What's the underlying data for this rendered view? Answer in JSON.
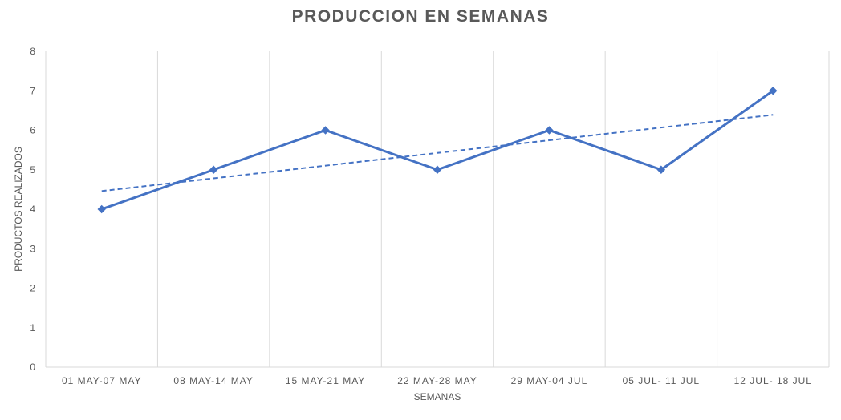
{
  "chart_data": {
    "type": "line",
    "title": "PRODUCCION EN SEMANAS",
    "xlabel": "SEMANAS",
    "ylabel": "PRODUCTOS REALIZADOS",
    "categories": [
      "01 MAY-07 MAY",
      "08 MAY-14 MAY",
      "15 MAY-21 MAY",
      "22 MAY-28 MAY",
      "29 MAY-04 JUL",
      "05 JUL- 11 JUL",
      "12 JUL- 18 JUL"
    ],
    "series": [
      {
        "values": [
          4,
          5,
          6,
          5,
          6,
          5,
          7
        ],
        "color": "#4472C4",
        "marker": "diamond",
        "line_style": "solid"
      }
    ],
    "trendline": {
      "type": "linear",
      "color": "#4472C4",
      "line_style": "dashed",
      "values": [
        4.46,
        4.79,
        5.11,
        5.43,
        5.75,
        6.07,
        6.39
      ]
    },
    "ylim": [
      0,
      8
    ],
    "yticks": [
      0,
      1,
      2,
      3,
      4,
      5,
      6,
      7,
      8
    ],
    "grid": {
      "vertical": true,
      "horizontal": false,
      "color": "#d9d9d9"
    },
    "axis_color": "#d9d9d9",
    "text_color": "#595959",
    "legend": "none"
  }
}
